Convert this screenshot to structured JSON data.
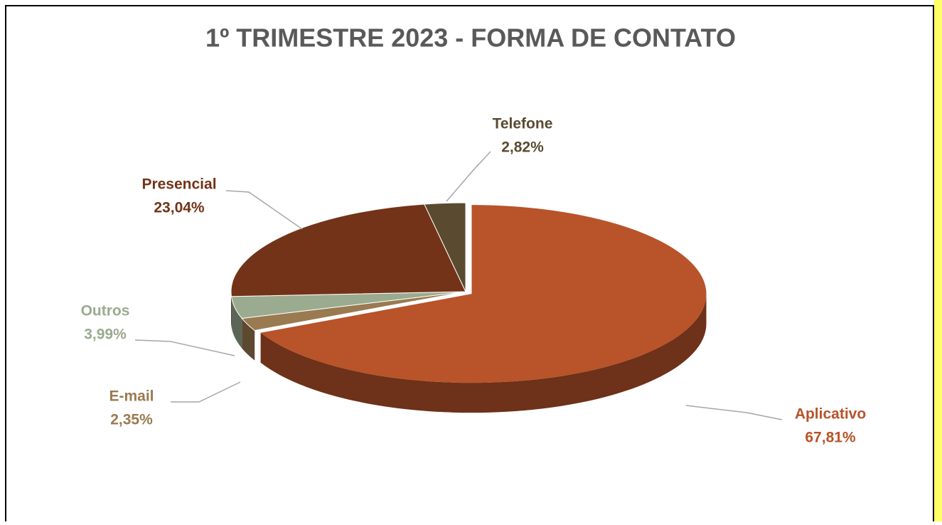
{
  "chart_data": {
    "type": "pie",
    "title": "1º TRIMESTRE 2023 - FORMA DE CONTATO",
    "categories": [
      "Aplicativo",
      "E-mail",
      "Outros",
      "Presencial",
      "Telefone"
    ],
    "values": [
      67.81,
      2.35,
      3.99,
      23.04,
      2.82
    ],
    "value_labels": [
      "67,81%",
      "2,35%",
      "3,99%",
      "23,04%",
      "2,82%"
    ],
    "colors": [
      "#b8532a",
      "#9a7a50",
      "#9aab8f",
      "#733318",
      "#5a4a30"
    ]
  }
}
